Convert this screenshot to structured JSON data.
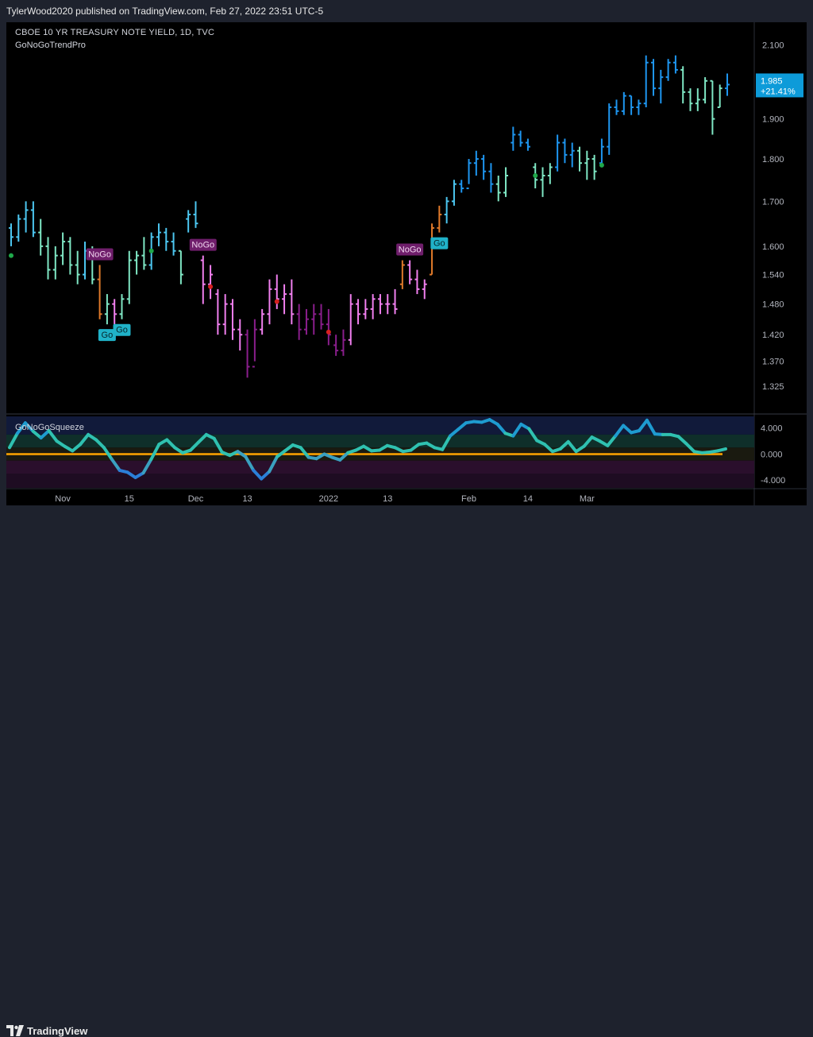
{
  "header": {
    "publisher": "TylerWood2020 published on TradingView.com, Feb 27, 2022 23:51 UTC-5"
  },
  "chart_title": {
    "symbol": "CBOE 10 YR TREASURY NOTE YIELD, 1D, TVC",
    "indicator": "GoNoGoTrendPro",
    "squeeze_name": "GoNoGoSqueeze"
  },
  "price_badge": {
    "value": "1.985",
    "change": "+21.41%"
  },
  "footer": {
    "brand": "TradingView"
  },
  "colors": {
    "background": "#000000",
    "brightGo": "#1e96f0",
    "go": "#4cc6f0",
    "weakGo": "#7fe7c4",
    "nogo": "#f07fee",
    "strongNogo": "#8a1e8c",
    "neutral": "#e07a2a",
    "badge": "#0d9bd9",
    "go_label_bg": "#20b2c8",
    "nogo_label_bg": "#6f1e6b",
    "zero_line": "#ffa500"
  },
  "chart_data": [
    {
      "type": "ohlc",
      "price_ticks": [
        2.1,
        2.0,
        1.9,
        1.8,
        1.7,
        1.6,
        1.54,
        1.48,
        1.42,
        1.37,
        1.325
      ],
      "price_tick_labels": [
        "2.100",
        "2.000",
        "1.900",
        "1.800",
        "1.700",
        "1.600",
        "1.540",
        "1.480",
        "1.420",
        "1.370",
        "1.325"
      ],
      "x_labels": [
        "Nov",
        "15",
        "Dec",
        "13",
        "2022",
        "13",
        "Feb",
        "14",
        "Mar"
      ],
      "x_label_index": [
        7,
        16,
        25,
        32,
        43,
        51,
        62,
        70,
        78
      ],
      "ylim": [
        1.28,
        2.16
      ],
      "scale": "log",
      "bars": [
        {
          "o": 1.64,
          "h": 1.65,
          "l": 1.6,
          "c": 1.62,
          "t": "go"
        },
        {
          "o": 1.62,
          "h": 1.67,
          "l": 1.61,
          "c": 1.66,
          "t": "go"
        },
        {
          "o": 1.66,
          "h": 1.7,
          "l": 1.63,
          "c": 1.68,
          "t": "go"
        },
        {
          "o": 1.68,
          "h": 1.7,
          "l": 1.62,
          "c": 1.63,
          "t": "go"
        },
        {
          "o": 1.63,
          "h": 1.66,
          "l": 1.58,
          "c": 1.6,
          "t": "weakgo"
        },
        {
          "o": 1.6,
          "h": 1.62,
          "l": 1.53,
          "c": 1.55,
          "t": "weakgo"
        },
        {
          "o": 1.55,
          "h": 1.6,
          "l": 1.53,
          "c": 1.58,
          "t": "weakgo"
        },
        {
          "o": 1.58,
          "h": 1.63,
          "l": 1.56,
          "c": 1.61,
          "t": "weakgo"
        },
        {
          "o": 1.61,
          "h": 1.62,
          "l": 1.54,
          "c": 1.56,
          "t": "weakgo"
        },
        {
          "o": 1.56,
          "h": 1.59,
          "l": 1.52,
          "c": 1.54,
          "t": "weakgo"
        },
        {
          "o": 1.54,
          "h": 1.61,
          "l": 1.53,
          "c": 1.59,
          "t": "go"
        },
        {
          "o": 1.58,
          "h": 1.6,
          "l": 1.52,
          "c": 1.53,
          "t": "weakgo"
        },
        {
          "o": 1.53,
          "h": 1.56,
          "l": 1.45,
          "c": 1.46,
          "t": "neutral"
        },
        {
          "o": 1.46,
          "h": 1.5,
          "l": 1.44,
          "c": 1.48,
          "t": "weakgo"
        },
        {
          "o": 1.48,
          "h": 1.49,
          "l": 1.44,
          "c": 1.46,
          "t": "nogo"
        },
        {
          "o": 1.46,
          "h": 1.5,
          "l": 1.45,
          "c": 1.49,
          "t": "weakgo"
        },
        {
          "o": 1.49,
          "h": 1.59,
          "l": 1.48,
          "c": 1.57,
          "t": "weakgo"
        },
        {
          "o": 1.57,
          "h": 1.59,
          "l": 1.54,
          "c": 1.58,
          "t": "weakgo"
        },
        {
          "o": 1.58,
          "h": 1.62,
          "l": 1.55,
          "c": 1.56,
          "t": "weakgo"
        },
        {
          "o": 1.56,
          "h": 1.63,
          "l": 1.55,
          "c": 1.62,
          "t": "go"
        },
        {
          "o": 1.62,
          "h": 1.65,
          "l": 1.6,
          "c": 1.63,
          "t": "go"
        },
        {
          "o": 1.63,
          "h": 1.64,
          "l": 1.59,
          "c": 1.61,
          "t": "go"
        },
        {
          "o": 1.61,
          "h": 1.63,
          "l": 1.58,
          "c": 1.59,
          "t": "go"
        },
        {
          "o": 1.59,
          "h": 1.59,
          "l": 1.52,
          "c": 1.54,
          "t": "weakgo"
        },
        {
          "o": 1.66,
          "h": 1.68,
          "l": 1.63,
          "c": 1.67,
          "t": "go"
        },
        {
          "o": 1.67,
          "h": 1.7,
          "l": 1.64,
          "c": 1.65,
          "t": "go"
        },
        {
          "o": 1.57,
          "h": 1.58,
          "l": 1.48,
          "c": 1.52,
          "t": "nogo"
        },
        {
          "o": 1.52,
          "h": 1.56,
          "l": 1.49,
          "c": 1.54,
          "t": "nogo"
        },
        {
          "o": 1.5,
          "h": 1.51,
          "l": 1.42,
          "c": 1.44,
          "t": "nogo"
        },
        {
          "o": 1.44,
          "h": 1.5,
          "l": 1.42,
          "c": 1.48,
          "t": "nogo"
        },
        {
          "o": 1.48,
          "h": 1.49,
          "l": 1.41,
          "c": 1.43,
          "t": "nogo"
        },
        {
          "o": 1.43,
          "h": 1.45,
          "l": 1.39,
          "c": 1.42,
          "t": "nogo"
        },
        {
          "o": 1.42,
          "h": 1.43,
          "l": 1.34,
          "c": 1.36,
          "t": "strongnogo"
        },
        {
          "o": 1.36,
          "h": 1.45,
          "l": 1.37,
          "c": 1.43,
          "t": "strongnogo"
        },
        {
          "o": 1.43,
          "h": 1.47,
          "l": 1.42,
          "c": 1.46,
          "t": "nogo"
        },
        {
          "o": 1.46,
          "h": 1.53,
          "l": 1.44,
          "c": 1.51,
          "t": "nogo"
        },
        {
          "o": 1.51,
          "h": 1.54,
          "l": 1.47,
          "c": 1.49,
          "t": "nogo"
        },
        {
          "o": 1.49,
          "h": 1.52,
          "l": 1.46,
          "c": 1.5,
          "t": "nogo"
        },
        {
          "o": 1.5,
          "h": 1.53,
          "l": 1.44,
          "c": 1.46,
          "t": "nogo"
        },
        {
          "o": 1.46,
          "h": 1.48,
          "l": 1.41,
          "c": 1.43,
          "t": "strongnogo"
        },
        {
          "o": 1.43,
          "h": 1.47,
          "l": 1.42,
          "c": 1.45,
          "t": "strongnogo"
        },
        {
          "o": 1.45,
          "h": 1.48,
          "l": 1.42,
          "c": 1.46,
          "t": "strongnogo"
        },
        {
          "o": 1.46,
          "h": 1.48,
          "l": 1.43,
          "c": 1.44,
          "t": "strongnogo"
        },
        {
          "o": 1.44,
          "h": 1.47,
          "l": 1.4,
          "c": 1.42,
          "t": "strongnogo"
        },
        {
          "o": 1.4,
          "h": 1.42,
          "l": 1.38,
          "c": 1.39,
          "t": "strongnogo"
        },
        {
          "o": 1.39,
          "h": 1.43,
          "l": 1.38,
          "c": 1.41,
          "t": "strongnogo"
        },
        {
          "o": 1.41,
          "h": 1.5,
          "l": 1.4,
          "c": 1.48,
          "t": "nogo"
        },
        {
          "o": 1.48,
          "h": 1.49,
          "l": 1.44,
          "c": 1.46,
          "t": "nogo"
        },
        {
          "o": 1.46,
          "h": 1.49,
          "l": 1.45,
          "c": 1.47,
          "t": "nogo"
        },
        {
          "o": 1.47,
          "h": 1.5,
          "l": 1.45,
          "c": 1.49,
          "t": "nogo"
        },
        {
          "o": 1.49,
          "h": 1.5,
          "l": 1.46,
          "c": 1.48,
          "t": "nogo"
        },
        {
          "o": 1.48,
          "h": 1.5,
          "l": 1.46,
          "c": 1.48,
          "t": "nogo"
        },
        {
          "o": 1.48,
          "h": 1.51,
          "l": 1.46,
          "c": 1.47,
          "t": "nogo"
        },
        {
          "o": 1.52,
          "h": 1.57,
          "l": 1.51,
          "c": 1.56,
          "t": "neutral"
        },
        {
          "o": 1.56,
          "h": 1.57,
          "l": 1.52,
          "c": 1.53,
          "t": "nogo"
        },
        {
          "o": 1.53,
          "h": 1.55,
          "l": 1.5,
          "c": 1.51,
          "t": "nogo"
        },
        {
          "o": 1.51,
          "h": 1.53,
          "l": 1.49,
          "c": 1.52,
          "t": "nogo"
        },
        {
          "o": 1.54,
          "h": 1.65,
          "l": 1.54,
          "c": 1.64,
          "t": "neutral"
        },
        {
          "o": 1.64,
          "h": 1.69,
          "l": 1.63,
          "c": 1.67,
          "t": "neutral"
        },
        {
          "o": 1.67,
          "h": 1.71,
          "l": 1.65,
          "c": 1.7,
          "t": "go"
        },
        {
          "o": 1.7,
          "h": 1.75,
          "l": 1.69,
          "c": 1.74,
          "t": "go"
        },
        {
          "o": 1.74,
          "h": 1.75,
          "l": 1.72,
          "c": 1.73,
          "t": "brightgo"
        },
        {
          "o": 1.73,
          "h": 1.8,
          "l": 1.74,
          "c": 1.79,
          "t": "brightgo"
        },
        {
          "o": 1.79,
          "h": 1.82,
          "l": 1.76,
          "c": 1.8,
          "t": "brightgo"
        },
        {
          "o": 1.8,
          "h": 1.81,
          "l": 1.75,
          "c": 1.77,
          "t": "brightgo"
        },
        {
          "o": 1.77,
          "h": 1.79,
          "l": 1.72,
          "c": 1.74,
          "t": "brightgo"
        },
        {
          "o": 1.74,
          "h": 1.76,
          "l": 1.7,
          "c": 1.72,
          "t": "weakgo"
        },
        {
          "o": 1.72,
          "h": 1.78,
          "l": 1.71,
          "c": 1.76,
          "t": "weakgo"
        },
        {
          "o": 1.84,
          "h": 1.88,
          "l": 1.82,
          "c": 1.86,
          "t": "brightgo"
        },
        {
          "o": 1.86,
          "h": 1.87,
          "l": 1.83,
          "c": 1.84,
          "t": "brightgo"
        },
        {
          "o": 1.84,
          "h": 1.85,
          "l": 1.82,
          "c": 1.83,
          "t": "brightgo"
        },
        {
          "o": 1.78,
          "h": 1.79,
          "l": 1.73,
          "c": 1.75,
          "t": "weakgo"
        },
        {
          "o": 1.75,
          "h": 1.78,
          "l": 1.71,
          "c": 1.76,
          "t": "weakgo"
        },
        {
          "o": 1.76,
          "h": 1.79,
          "l": 1.74,
          "c": 1.78,
          "t": "weakgo"
        },
        {
          "o": 1.78,
          "h": 1.86,
          "l": 1.77,
          "c": 1.84,
          "t": "brightgo"
        },
        {
          "o": 1.84,
          "h": 1.85,
          "l": 1.79,
          "c": 1.81,
          "t": "brightgo"
        },
        {
          "o": 1.81,
          "h": 1.84,
          "l": 1.78,
          "c": 1.82,
          "t": "brightgo"
        },
        {
          "o": 1.82,
          "h": 1.83,
          "l": 1.77,
          "c": 1.79,
          "t": "weakgo"
        },
        {
          "o": 1.79,
          "h": 1.82,
          "l": 1.75,
          "c": 1.8,
          "t": "weakgo"
        },
        {
          "o": 1.8,
          "h": 1.81,
          "l": 1.75,
          "c": 1.77,
          "t": "weakgo"
        },
        {
          "o": 1.79,
          "h": 1.85,
          "l": 1.78,
          "c": 1.83,
          "t": "brightgo"
        },
        {
          "o": 1.83,
          "h": 1.94,
          "l": 1.81,
          "c": 1.93,
          "t": "brightgo"
        },
        {
          "o": 1.93,
          "h": 1.95,
          "l": 1.91,
          "c": 1.92,
          "t": "brightgo"
        },
        {
          "o": 1.92,
          "h": 1.97,
          "l": 1.91,
          "c": 1.96,
          "t": "brightgo"
        },
        {
          "o": 1.96,
          "h": 1.96,
          "l": 1.91,
          "c": 1.93,
          "t": "brightgo"
        },
        {
          "o": 1.93,
          "h": 1.95,
          "l": 1.91,
          "c": 1.94,
          "t": "brightgo"
        },
        {
          "o": 1.94,
          "h": 2.07,
          "l": 1.93,
          "c": 2.05,
          "t": "brightgo"
        },
        {
          "o": 2.05,
          "h": 2.06,
          "l": 1.96,
          "c": 1.98,
          "t": "brightgo"
        },
        {
          "o": 1.98,
          "h": 2.03,
          "l": 1.94,
          "c": 2.01,
          "t": "brightgo"
        },
        {
          "o": 2.01,
          "h": 2.06,
          "l": 2.0,
          "c": 2.05,
          "t": "brightgo"
        },
        {
          "o": 2.05,
          "h": 2.07,
          "l": 2.02,
          "c": 2.03,
          "t": "brightgo"
        },
        {
          "o": 2.03,
          "h": 2.04,
          "l": 1.94,
          "c": 1.97,
          "t": "weakgo"
        },
        {
          "o": 1.97,
          "h": 1.98,
          "l": 1.92,
          "c": 1.94,
          "t": "weakgo"
        },
        {
          "o": 1.94,
          "h": 1.98,
          "l": 1.92,
          "c": 1.95,
          "t": "weakgo"
        },
        {
          "o": 1.95,
          "h": 2.01,
          "l": 1.94,
          "c": 2.0,
          "t": "weakgo"
        },
        {
          "o": 2.0,
          "h": 2.0,
          "l": 1.86,
          "c": 1.9,
          "t": "weakgo"
        },
        {
          "o": 1.93,
          "h": 1.99,
          "l": 1.93,
          "c": 1.98,
          "t": "weakgo"
        },
        {
          "o": 1.98,
          "h": 2.02,
          "l": 1.96,
          "c": 1.99,
          "t": "brightgo"
        }
      ],
      "signals": [
        {
          "index": 12,
          "label": "NoGo",
          "kind": "nogo"
        },
        {
          "index": 13,
          "label": "Go",
          "kind": "go"
        },
        {
          "index": 15,
          "label": "Go",
          "kind": "go"
        },
        {
          "index": 26,
          "label": "NoGo",
          "kind": "nogo"
        },
        {
          "index": 54,
          "label": "NoGo",
          "kind": "nogo"
        },
        {
          "index": 58,
          "label": "Go",
          "kind": "go"
        }
      ],
      "dots": [
        {
          "index": 0,
          "price": 1.58,
          "kind": "green"
        },
        {
          "index": 19,
          "price": 1.59,
          "kind": "green"
        },
        {
          "index": 27,
          "price": 1.515,
          "kind": "red"
        },
        {
          "index": 36,
          "price": 1.485,
          "kind": "red"
        },
        {
          "index": 43,
          "price": 1.425,
          "kind": "red"
        },
        {
          "index": 71,
          "price": 1.76,
          "kind": "green"
        },
        {
          "index": 80,
          "price": 1.785,
          "kind": "green"
        }
      ]
    },
    {
      "type": "line",
      "name": "GoNoGoSqueeze",
      "ylim": [
        -5.2,
        5.8
      ],
      "y_ticks": [
        4.0,
        0.0,
        -4.0
      ],
      "y_tick_labels": [
        "4.000",
        "0.000",
        "-4.000"
      ],
      "values": [
        1.0,
        3.2,
        4.8,
        3.5,
        2.5,
        3.6,
        2.0,
        1.2,
        0.5,
        1.5,
        3.0,
        2.2,
        1.0,
        -0.8,
        -2.5,
        -2.8,
        -3.6,
        -2.9,
        -0.8,
        1.5,
        2.2,
        1.0,
        0.2,
        0.6,
        1.8,
        3.0,
        2.4,
        0.3,
        -0.2,
        0.4,
        -0.4,
        -2.5,
        -3.8,
        -2.7,
        -0.4,
        0.5,
        1.4,
        1.0,
        -0.5,
        -0.7,
        0.0,
        -0.5,
        -0.9,
        0.2,
        0.6,
        1.2,
        0.5,
        0.6,
        1.3,
        1.0,
        0.4,
        0.6,
        1.5,
        1.7,
        1.0,
        0.7,
        2.8,
        3.8,
        4.8,
        5.0,
        4.9,
        5.3,
        4.6,
        3.2,
        2.8,
        4.6,
        3.9,
        2.1,
        1.5,
        0.4,
        0.8,
        1.9,
        0.4,
        1.2,
        2.6,
        2.0,
        1.3,
        2.8,
        4.4,
        3.3,
        3.6,
        5.2,
        3.1,
        3.0,
        3.0,
        2.7,
        1.6,
        0.4,
        0.2,
        0.3,
        0.5,
        0.8
      ]
    }
  ]
}
